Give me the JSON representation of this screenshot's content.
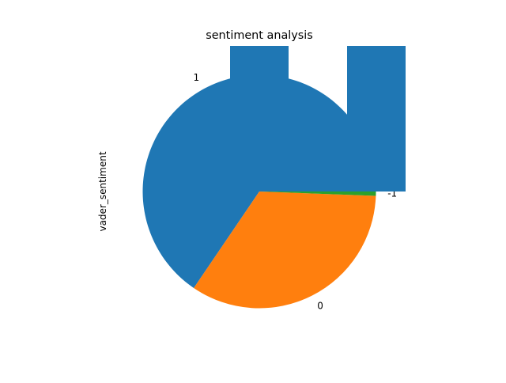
{
  "chart_data": {
    "type": "pie",
    "title": "sentiment analysis",
    "ylabel": "vader_sentiment",
    "categories": [
      "1",
      "0",
      "-1"
    ],
    "values": [
      0.655,
      0.339,
      0.006
    ],
    "colors": [
      "#1f77b4",
      "#ff7f0e",
      "#2ca02c"
    ],
    "start_angle_deg": 0,
    "direction": "counterclockwise"
  }
}
